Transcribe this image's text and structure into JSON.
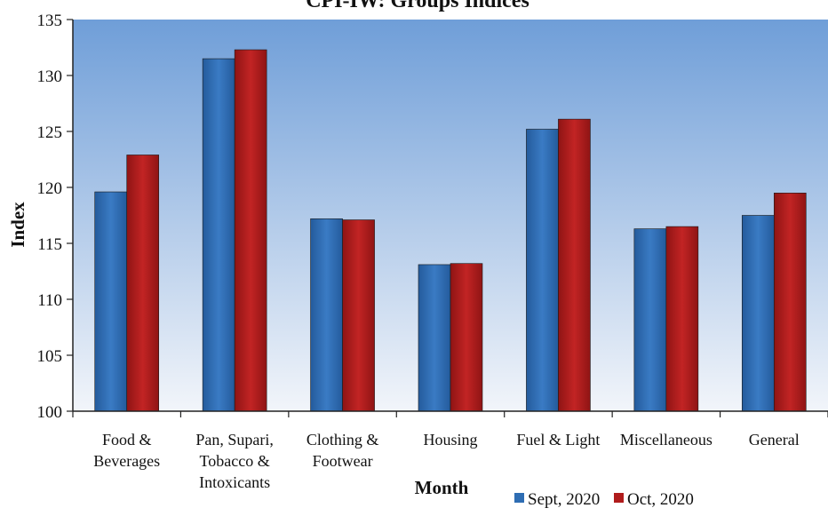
{
  "chart_data": {
    "type": "bar",
    "title": "CPI-IW: Groups Indices",
    "xlabel": "Month",
    "ylabel": "Index",
    "ylim": [
      100,
      135
    ],
    "yticks": [
      100,
      105,
      110,
      115,
      120,
      125,
      130,
      135
    ],
    "grid": false,
    "legend_position": "bottom-right",
    "categories": [
      [
        "Food &",
        "Beverages"
      ],
      [
        "Pan, Supari,",
        "Tobacco &",
        "Intoxicants"
      ],
      [
        "Clothing &",
        "Footwear"
      ],
      [
        "Housing"
      ],
      [
        "Fuel & Light"
      ],
      [
        "Miscellaneous"
      ],
      [
        "General"
      ]
    ],
    "series": [
      {
        "name": "Sept, 2020",
        "color": "#2e6db3",
        "values": [
          119.6,
          131.5,
          117.2,
          113.1,
          125.2,
          116.3,
          117.5
        ]
      },
      {
        "name": "Oct, 2020",
        "color": "#b01c1c",
        "values": [
          122.9,
          132.3,
          117.1,
          113.2,
          126.1,
          116.5,
          119.5
        ]
      }
    ],
    "plot_background": [
      "#6f9ed8",
      "#f2f5fa"
    ]
  }
}
